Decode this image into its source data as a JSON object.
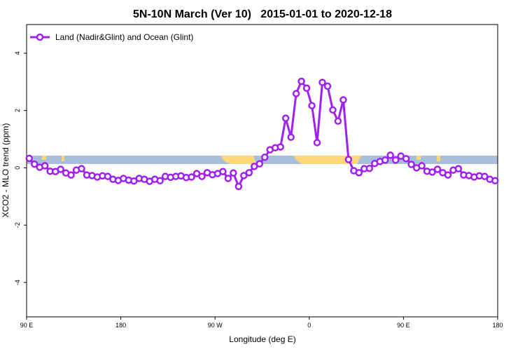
{
  "chart_data": {
    "type": "line",
    "title": "5N-10N March (Ver 10)   2015-01-01 to 2020-12-18",
    "x_label": "Longitude (deg E)",
    "y_label": "XCO2 - MLO trend (ppm)",
    "xlim": [
      90,
      540
    ],
    "ylim": [
      -5.2,
      5
    ],
    "xticks": [
      {
        "value": 90,
        "label": "90 E"
      },
      {
        "value": 180,
        "label": "180"
      },
      {
        "value": 270,
        "label": "90 W"
      },
      {
        "value": 360,
        "label": "0"
      },
      {
        "value": 450,
        "label": "90 E"
      },
      {
        "value": 540,
        "label": "180"
      }
    ],
    "yticks": [
      -4,
      -2,
      0,
      2,
      4
    ],
    "legend": "top-left",
    "x": [
      92.5,
      97.5,
      102.5,
      107.5,
      112.5,
      117.5,
      122.5,
      127.5,
      132.5,
      137.5,
      142.5,
      147.5,
      152.5,
      157.5,
      162.5,
      167.5,
      172.5,
      177.5,
      182.5,
      187.5,
      192.5,
      197.5,
      202.5,
      207.5,
      212.5,
      217.5,
      222.5,
      227.5,
      232.5,
      237.5,
      242.5,
      247.5,
      252.5,
      257.5,
      262.5,
      267.5,
      272.5,
      277.5,
      282.5,
      287.5,
      292.5,
      297.5,
      302.5,
      307.5,
      312.5,
      317.5,
      322.5,
      327.5,
      332.5,
      337.5,
      342.5,
      347.5,
      352.5,
      357.5,
      362.5,
      367.5,
      372.5,
      377.5,
      382.5,
      387.5,
      392.5,
      397.5,
      402.5,
      407.5,
      412.5,
      417.5,
      422.5,
      427.5,
      432.5,
      437.5,
      442.5,
      447.5,
      452.5,
      457.5,
      462.5,
      467.5,
      472.5,
      477.5,
      482.5,
      487.5,
      492.5,
      497.5,
      502.5,
      507.5,
      512.5,
      517.5,
      522.5,
      527.5,
      532.5,
      537.5
    ],
    "series": [
      {
        "name": "Land (Nadir&Glint) and Ocean (Glint)",
        "color": "#a020f0",
        "values": [
          0.33,
          0.13,
          0.02,
          0.07,
          -0.12,
          -0.13,
          -0.05,
          -0.18,
          -0.25,
          -0.08,
          -0.03,
          -0.25,
          -0.27,
          -0.32,
          -0.28,
          -0.3,
          -0.4,
          -0.44,
          -0.37,
          -0.43,
          -0.46,
          -0.37,
          -0.4,
          -0.47,
          -0.4,
          -0.45,
          -0.3,
          -0.33,
          -0.3,
          -0.28,
          -0.34,
          -0.32,
          -0.2,
          -0.3,
          -0.17,
          -0.24,
          -0.2,
          -0.13,
          -0.37,
          -0.18,
          -0.65,
          -0.27,
          -0.17,
          0.05,
          0.14,
          0.37,
          0.63,
          0.7,
          0.73,
          1.73,
          1.07,
          2.59,
          3.02,
          2.78,
          2.17,
          0.88,
          2.98,
          2.85,
          2.02,
          1.63,
          2.37,
          0.29,
          -0.1,
          -0.17,
          -0.03,
          -0.02,
          0.15,
          0.22,
          0.27,
          0.44,
          0.27,
          0.41,
          0.32,
          0.12,
          0.0,
          0.07,
          -0.12,
          -0.15,
          -0.05,
          -0.17,
          -0.25,
          -0.08,
          -0.03,
          -0.25,
          -0.27,
          -0.32,
          -0.28,
          -0.3,
          -0.4,
          -0.45
        ]
      }
    ]
  }
}
